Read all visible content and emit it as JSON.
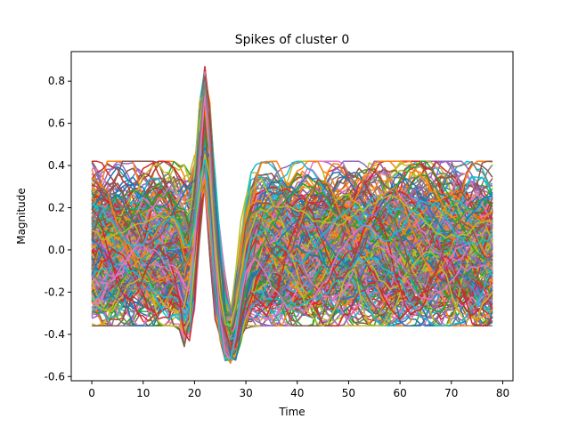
{
  "chart_data": {
    "type": "line",
    "title": "Spikes of cluster 0",
    "xlabel": "Time",
    "ylabel": "Magnitude",
    "xlim": [
      -4,
      82
    ],
    "ylim": [
      -0.62,
      0.94
    ],
    "x_ticks": [
      0,
      10,
      20,
      30,
      40,
      50,
      60,
      70,
      80
    ],
    "y_ticks": [
      -0.6,
      -0.4,
      -0.2,
      0.0,
      0.2,
      0.4,
      0.6,
      0.8
    ],
    "samples_per_trace": 79,
    "grid": false,
    "legend": "none",
    "series_palette": [
      "#1f77b4",
      "#ff7f0e",
      "#2ca02c",
      "#d62728",
      "#9467bd",
      "#8c564b",
      "#e377c2",
      "#7f7f7f",
      "#bcbd22",
      "#17becf"
    ],
    "approx_trace_count": 300,
    "peak_time": 22,
    "trough_time": 27,
    "peak_range": [
      0.3,
      0.88
    ],
    "trough_range": [
      -0.54,
      -0.3
    ],
    "baseline_range": [
      -0.35,
      0.4
    ]
  }
}
